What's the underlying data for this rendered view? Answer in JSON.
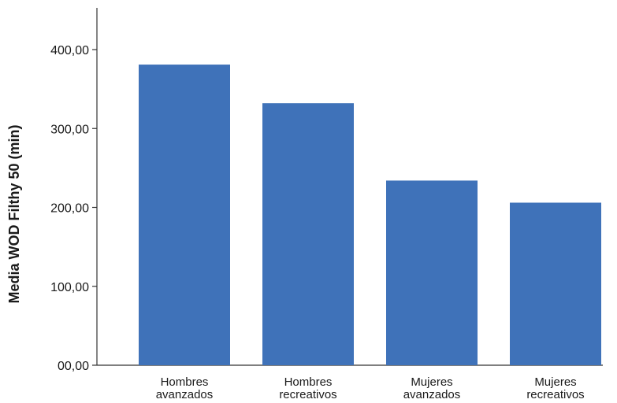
{
  "chart_data": {
    "type": "bar",
    "title": "",
    "xlabel": "",
    "ylabel": "Media WOD Filthy  50 (min)",
    "categories": [
      [
        "Hombres",
        "avanzados"
      ],
      [
        "Hombres",
        "recreativos"
      ],
      [
        "Mujeres",
        "avanzados"
      ],
      [
        "Mujeres",
        "recreativos"
      ]
    ],
    "values": [
      381,
      332,
      234,
      206
    ],
    "ylim": [
      0,
      450
    ],
    "yticks": [
      0,
      100,
      200,
      300,
      400
    ],
    "ytick_labels": [
      "00,00",
      "100,00",
      "200,00",
      "300,00",
      "400,00"
    ],
    "grid": false,
    "bar_color": "#3f72b9"
  }
}
